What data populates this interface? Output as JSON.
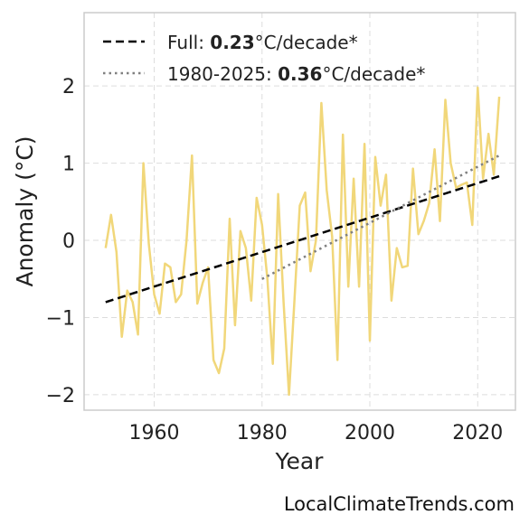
{
  "chart_data": {
    "type": "line",
    "title": "",
    "xlabel": "Year",
    "ylabel": "Anomaly (°C)",
    "xlim": [
      1947,
      2027
    ],
    "ylim": [
      -2.2,
      2.95
    ],
    "xticks": [
      1960,
      1980,
      2000,
      2020
    ],
    "xtick_labels": [
      "1960",
      "1980",
      "2000",
      "2020"
    ],
    "yticks": [
      -2,
      -1,
      0,
      1,
      2
    ],
    "ytick_labels": [
      "−2",
      "−1",
      "0",
      "1",
      "2"
    ],
    "grid": true,
    "legend_position": "top-left",
    "series": [
      {
        "color": "#f1d77a",
        "style": "solid",
        "x": [
          1951,
          1952,
          1953,
          1954,
          1955,
          1956,
          1957,
          1958,
          1959,
          1960,
          1961,
          1962,
          1963,
          1964,
          1965,
          1966,
          1967,
          1968,
          1969,
          1970,
          1971,
          1972,
          1973,
          1974,
          1975,
          1976,
          1977,
          1978,
          1979,
          1980,
          1981,
          1982,
          1983,
          1984,
          1985,
          1986,
          1987,
          1988,
          1989,
          1990,
          1991,
          1992,
          1993,
          1994,
          1995,
          1996,
          1997,
          1998,
          1999,
          2000,
          2001,
          2002,
          2003,
          2004,
          2005,
          2006,
          2007,
          2008,
          2009,
          2010,
          2011,
          2012,
          2013,
          2014,
          2015,
          2016,
          2017,
          2018,
          2019,
          2020,
          2021,
          2022,
          2023,
          2024
        ],
        "y": [
          -0.1,
          0.33,
          -0.15,
          -1.25,
          -0.65,
          -0.8,
          -1.22,
          1.0,
          -0.05,
          -0.7,
          -0.95,
          -0.3,
          -0.35,
          -0.8,
          -0.7,
          0.0,
          1.1,
          -0.82,
          -0.55,
          -0.35,
          -1.55,
          -1.72,
          -1.4,
          0.28,
          -1.1,
          0.12,
          -0.1,
          -0.78,
          0.55,
          0.2,
          -0.5,
          -1.6,
          0.6,
          -0.8,
          -2.0,
          -0.8,
          0.45,
          0.62,
          -0.4,
          0.0,
          1.78,
          0.65,
          0.05,
          -1.55,
          1.37,
          -0.6,
          0.8,
          -0.6,
          1.25,
          -1.3,
          1.08,
          0.45,
          0.85,
          -0.78,
          -0.1,
          -0.35,
          -0.33,
          0.93,
          0.08,
          0.25,
          0.48,
          1.18,
          0.25,
          1.82,
          1.0,
          0.68,
          0.72,
          0.75,
          0.2,
          1.98,
          0.8,
          1.38,
          0.85,
          1.86
        ]
      },
      {
        "name": "Full: 0.23°C/decade*",
        "color": "#000000",
        "style": "dashed",
        "x": [
          1951,
          2024
        ],
        "y": [
          -0.8,
          0.83
        ]
      },
      {
        "name": "1980-2025: 0.36°C/decade*",
        "color": "#808080",
        "style": "dotted",
        "x": [
          1980,
          2024
        ],
        "y": [
          -0.5,
          1.1
        ]
      }
    ]
  },
  "legend": [
    {
      "prefix": "Full: ",
      "value": "0.23",
      "suffix": "°C/decade*"
    },
    {
      "prefix": "1980-2025: ",
      "value": "0.36",
      "suffix": "°C/decade*"
    }
  ],
  "credit": "LocalClimateTrends.com"
}
